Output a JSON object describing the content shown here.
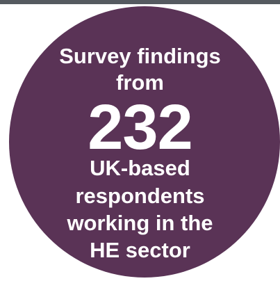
{
  "badge": {
    "lines_top": [
      "Survey findings",
      "from"
    ],
    "number": "232",
    "lines_bottom": [
      "UK-based",
      "respondents",
      "working in the",
      "HE sector"
    ]
  },
  "colors": {
    "circle": "#5a3356",
    "text": "#ffffff",
    "top_bar": "#555a60",
    "background": "#ffffff"
  }
}
